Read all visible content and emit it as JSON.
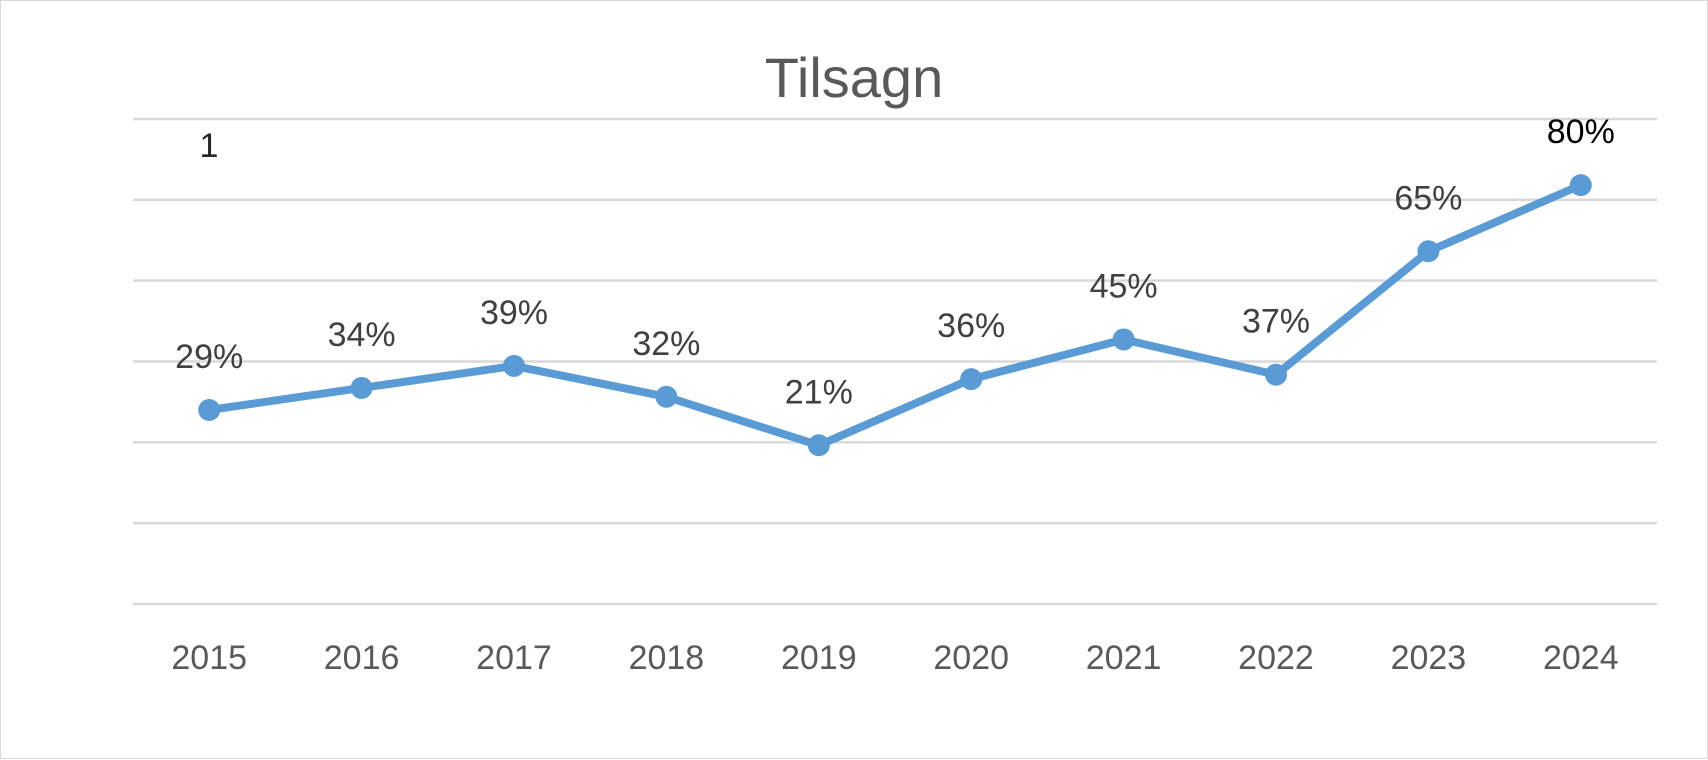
{
  "chart_data": {
    "type": "line",
    "title": "Tilsagn",
    "xlabel": "",
    "ylabel": "",
    "categories": [
      "2015",
      "2016",
      "2017",
      "2018",
      "2019",
      "2020",
      "2021",
      "2022",
      "2023",
      "2024"
    ],
    "series": [
      {
        "values": [
          29,
          34,
          39,
          32,
          21,
          36,
          45,
          37,
          65,
          80
        ]
      }
    ],
    "data_labels": [
      "29%",
      "34%",
      "39%",
      "32%",
      "21%",
      "36%",
      "45%",
      "37%",
      "65%",
      "80%"
    ],
    "annotations": [
      "1"
    ],
    "y_axis_labels_shown": false,
    "grid": true,
    "legend": "none",
    "colors": {
      "line": "#5b9bd5",
      "grid": "#d9d9d9",
      "title": "#595959",
      "ticks": "#595959"
    }
  }
}
